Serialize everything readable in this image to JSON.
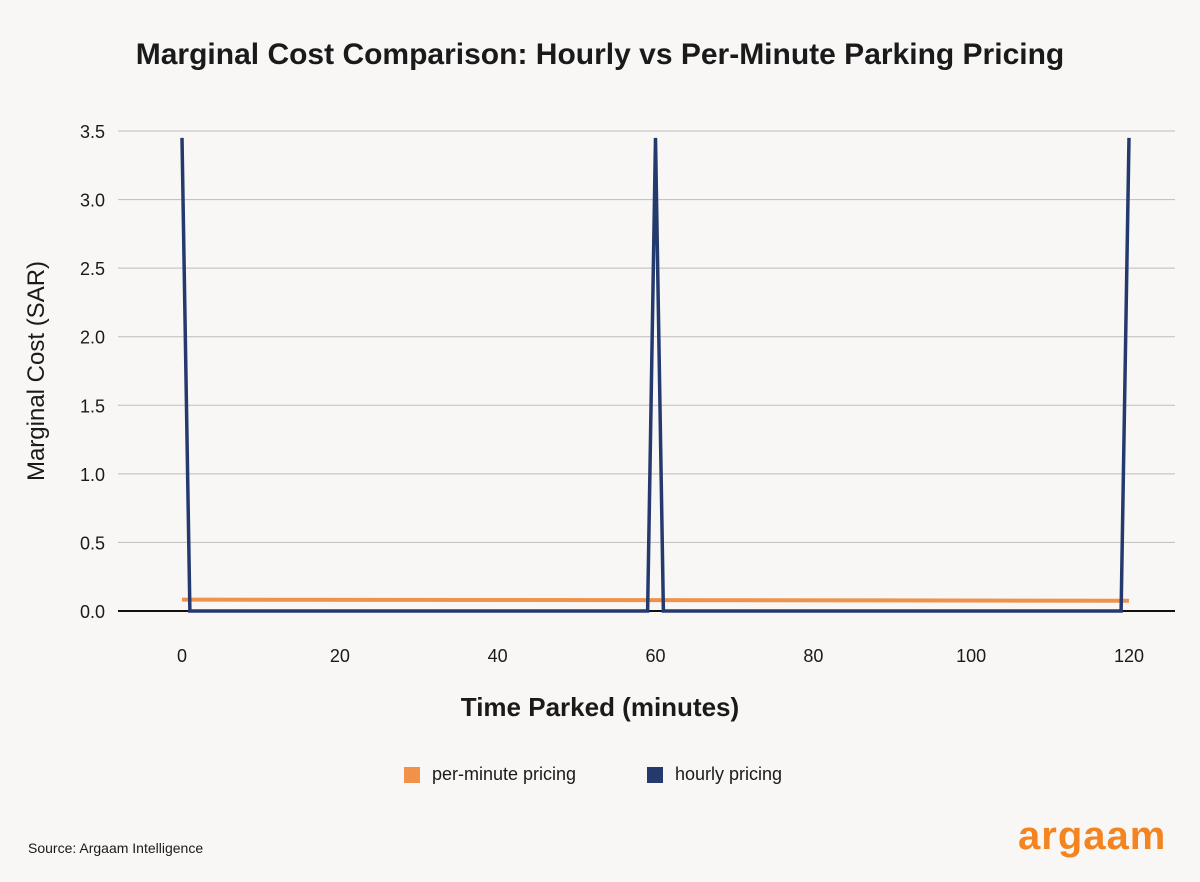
{
  "chart_data": {
    "type": "line",
    "title": "Marginal Cost Comparison: Hourly vs Per-Minute Parking Pricing",
    "xlabel": "Time Parked (minutes)",
    "ylabel": "Marginal Cost (SAR)",
    "xlim": [
      -10,
      124
    ],
    "ylim": [
      0,
      3.5
    ],
    "xticks": [
      "0",
      "20",
      "40",
      "60",
      "80",
      "100",
      "120"
    ],
    "xtick_values": [
      0,
      20,
      40,
      60,
      80,
      100,
      120
    ],
    "yticks": [
      "0.0",
      "0.5",
      "1.0",
      "1.5",
      "2.0",
      "2.5",
      "3.0",
      "3.5"
    ],
    "ytick_values": [
      0,
      0.5,
      1,
      1.5,
      2,
      2.5,
      3,
      3.5
    ],
    "grid": "horizontal",
    "legend_placement": "bottom",
    "series": [
      {
        "name": "per-minute pricing",
        "color": "#f0924a",
        "x": [
          0,
          120
        ],
        "values": [
          0.083,
          0.075
        ]
      },
      {
        "name": "hourly pricing",
        "color": "#243a6e",
        "x": [
          0,
          1,
          59,
          60,
          61,
          119,
          120
        ],
        "values": [
          3.45,
          0,
          0,
          3.45,
          0,
          0,
          3.45
        ]
      }
    ]
  },
  "source": "Source: Argaam Intelligence",
  "logo": "argaam",
  "colors": {
    "background": "#f8f7f5",
    "brand": "#f4841f"
  }
}
